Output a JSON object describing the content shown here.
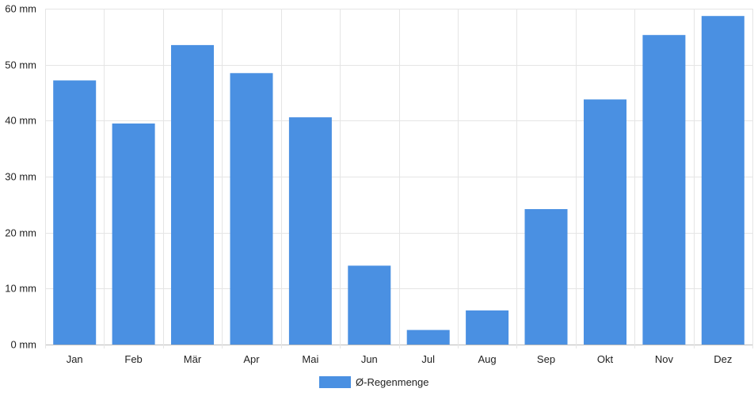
{
  "chart_data": {
    "type": "bar",
    "categories": [
      "Jan",
      "Feb",
      "Mär",
      "Apr",
      "Mai",
      "Jun",
      "Jul",
      "Aug",
      "Sep",
      "Okt",
      "Nov",
      "Dez"
    ],
    "series": [
      {
        "name": "Ø-Regenmenge",
        "values": [
          47.2,
          39.5,
          53.5,
          48.5,
          40.6,
          14.1,
          2.6,
          6.1,
          24.2,
          43.8,
          55.3,
          58.7
        ],
        "color": "#4a90e2"
      }
    ],
    "y_tick_labels": [
      "0 mm",
      "10 mm",
      "20 mm",
      "30 mm",
      "40 mm",
      "50 mm",
      "60 mm"
    ],
    "y_ticks": [
      0,
      10,
      20,
      30,
      40,
      50,
      60
    ],
    "ylim": [
      0,
      60
    ],
    "grid": true,
    "legend_position": "bottom",
    "title": "",
    "xlabel": "",
    "ylabel": ""
  }
}
